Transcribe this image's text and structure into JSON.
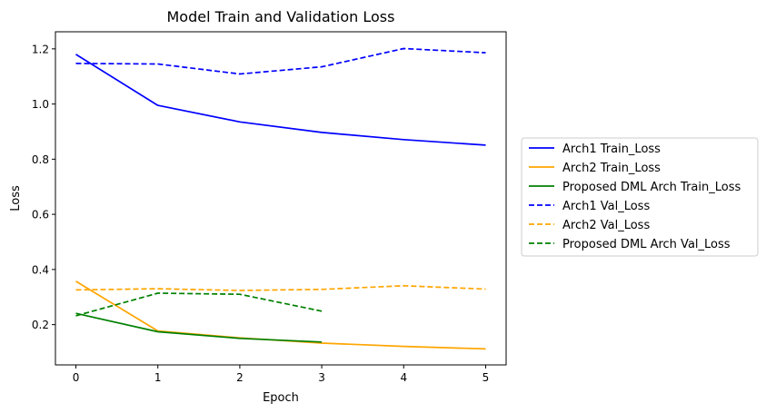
{
  "chart_data": {
    "type": "line",
    "title": "Model Train and Validation Loss",
    "xlabel": "Epoch",
    "ylabel": "Loss",
    "xlim": [
      -0.25,
      5.25
    ],
    "ylim": [
      0.054,
      1.262
    ],
    "xticks": [
      0,
      1,
      2,
      3,
      4,
      5
    ],
    "yticks": [
      0.2,
      0.4,
      0.6,
      0.8,
      1.0,
      1.2
    ],
    "xtick_labels": [
      "0",
      "1",
      "2",
      "3",
      "4",
      "5"
    ],
    "ytick_labels": [
      "0.2",
      "0.4",
      "0.6",
      "0.8",
      "1.0",
      "1.2"
    ],
    "grid": false,
    "legend_position": "outside-right",
    "series": [
      {
        "name": "Arch1 Train_Loss",
        "color": "#0000ff",
        "style": "solid",
        "x": [
          0,
          1,
          2,
          3,
          4,
          5
        ],
        "values": [
          1.18,
          0.995,
          0.935,
          0.897,
          0.871,
          0.851
        ]
      },
      {
        "name": "Arch2 Train_Loss",
        "color": "#ffa500",
        "style": "solid",
        "x": [
          0,
          1,
          2,
          3,
          4,
          5
        ],
        "values": [
          0.357,
          0.177,
          0.152,
          0.133,
          0.121,
          0.112
        ]
      },
      {
        "name": "Proposed DML Arch Train_Loss",
        "color": "#008000",
        "style": "solid",
        "x": [
          0,
          1,
          2,
          3
        ],
        "values": [
          0.241,
          0.174,
          0.15,
          0.137
        ]
      },
      {
        "name": "Arch1 Val_Loss",
        "color": "#0000ff",
        "style": "dashed",
        "x": [
          0,
          1,
          2,
          3,
          4,
          5
        ],
        "values": [
          1.147,
          1.145,
          1.109,
          1.135,
          1.201,
          1.186
        ]
      },
      {
        "name": "Arch2 Val_Loss",
        "color": "#ffa500",
        "style": "dashed",
        "x": [
          0,
          1,
          2,
          3,
          4,
          5
        ],
        "values": [
          0.326,
          0.33,
          0.324,
          0.328,
          0.341,
          0.329
        ]
      },
      {
        "name": "Proposed DML Arch Val_Loss",
        "color": "#008000",
        "style": "dashed",
        "x": [
          0,
          1,
          2,
          3
        ],
        "values": [
          0.232,
          0.314,
          0.31,
          0.249
        ]
      }
    ]
  }
}
